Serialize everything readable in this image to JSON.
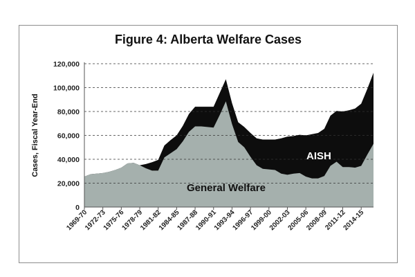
{
  "chart_data": {
    "type": "area",
    "title": "Figure 4: Alberta Welfare Cases",
    "xlabel": "",
    "ylabel": "Cases, Fiscal Year-End",
    "ylim": [
      0,
      120000
    ],
    "yticks": [
      0,
      20000,
      40000,
      60000,
      80000,
      100000,
      120000
    ],
    "ytick_labels": [
      "0",
      "20,000",
      "40,000",
      "60,000",
      "80,000",
      "100,000",
      "120,000"
    ],
    "xtick_labels": [
      "1969-70",
      "1972-73",
      "1975-76",
      "1978-79",
      "1981-82",
      "1984-85",
      "1987-88",
      "1990-91",
      "1993-94",
      "1996-97",
      "1999-00",
      "2002-03",
      "2005-06",
      "2008-09",
      "2011-12",
      "2014-15"
    ],
    "grid": "horizontal dashed",
    "stacked": true,
    "x": [
      "1969-70",
      "1970-71",
      "1971-72",
      "1972-73",
      "1973-74",
      "1974-75",
      "1975-76",
      "1976-77",
      "1977-78",
      "1978-79",
      "1979-80",
      "1980-81",
      "1981-82",
      "1982-83",
      "1983-84",
      "1984-85",
      "1985-86",
      "1986-87",
      "1987-88",
      "1988-89",
      "1989-90",
      "1990-91",
      "1991-92",
      "1992-93",
      "1993-94",
      "1994-95",
      "1995-96",
      "1996-97",
      "1997-98",
      "1998-99",
      "1999-00",
      "2000-01",
      "2001-02",
      "2002-03",
      "2003-04",
      "2004-05",
      "2005-06",
      "2006-07",
      "2007-08",
      "2008-09",
      "2009-10",
      "2010-11",
      "2011-12",
      "2012-13",
      "2013-14",
      "2014-15",
      "2015-16",
      "2016-17"
    ],
    "series": [
      {
        "name": "General Welfare",
        "color": "#a5b0ad",
        "values": [
          25500,
          27500,
          28000,
          28500,
          29500,
          31000,
          33000,
          36500,
          37000,
          35000,
          32500,
          30500,
          30500,
          41500,
          45000,
          48500,
          55000,
          63000,
          67500,
          67500,
          67000,
          66500,
          77000,
          88500,
          69500,
          54500,
          50000,
          42000,
          35000,
          32000,
          31500,
          31000,
          28000,
          27000,
          28000,
          28500,
          25500,
          24000,
          24000,
          26000,
          34500,
          38000,
          33500,
          33500,
          33000,
          34500,
          44000,
          53000
        ]
      },
      {
        "name": "AISH",
        "color": "#0d0d0d",
        "values": [
          0,
          0,
          0,
          0,
          0,
          0,
          0,
          0,
          0,
          0,
          3500,
          7000,
          9000,
          10000,
          11000,
          11500,
          13000,
          15000,
          16500,
          16500,
          17000,
          17500,
          18500,
          18500,
          17500,
          16500,
          17000,
          20000,
          22500,
          24500,
          25000,
          25500,
          29500,
          32000,
          31500,
          32000,
          34500,
          37000,
          38000,
          39500,
          42000,
          42500,
          46500,
          47500,
          49500,
          52000,
          55000,
          59500
        ]
      }
    ],
    "annotations": [
      "AISH",
      "General Welfare"
    ]
  }
}
